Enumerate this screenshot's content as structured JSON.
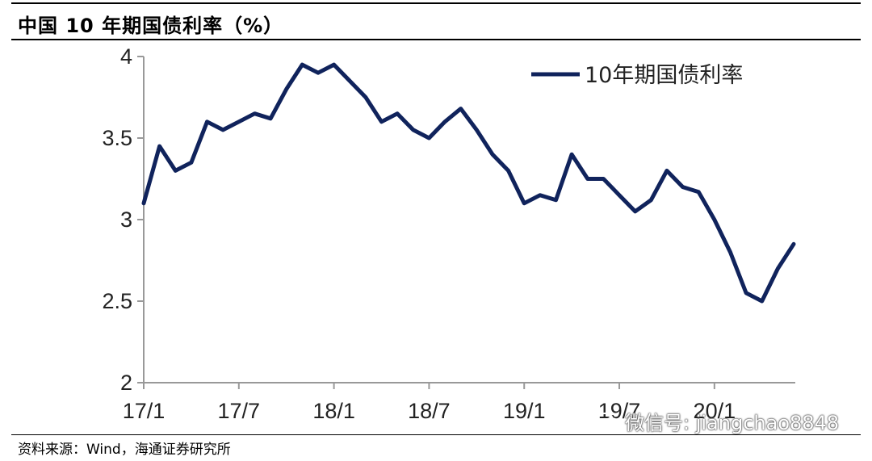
{
  "header": {
    "title": "中国 10 年期国债利率（%）"
  },
  "footer": {
    "source": "资料来源：Wind，海通证券研究所"
  },
  "watermark": {
    "text": "微信号: jiangchao8848",
    "icon": "wechat-icon"
  },
  "colors": {
    "series": "#10235c",
    "axis": "#999999"
  },
  "chart_data": {
    "type": "line",
    "title": "中国 10 年期国债利率（%）",
    "xlabel": "",
    "ylabel": "",
    "ylim": [
      2,
      4
    ],
    "yticks": [
      "2",
      "2.5",
      "3",
      "3.5",
      "4"
    ],
    "xticks": [
      "17/1",
      "17/7",
      "18/1",
      "18/7",
      "19/1",
      "19/7",
      "20/1"
    ],
    "legend": "top-right",
    "grid": false,
    "series": [
      {
        "name": "10年期国债利率",
        "x": [
          "17/1",
          "17/2",
          "17/3",
          "17/4",
          "17/5",
          "17/6",
          "17/7",
          "17/8",
          "17/9",
          "17/10",
          "17/11",
          "17/12",
          "18/1",
          "18/2",
          "18/3",
          "18/4",
          "18/5",
          "18/6",
          "18/7",
          "18/8",
          "18/9",
          "18/10",
          "18/11",
          "18/12",
          "19/1",
          "19/2",
          "19/3",
          "19/4",
          "19/5",
          "19/6",
          "19/7",
          "19/8",
          "19/9",
          "19/10",
          "19/11",
          "19/12",
          "20/1",
          "20/2",
          "20/3",
          "20/4",
          "20/5",
          "20/6"
        ],
        "values": [
          3.1,
          3.45,
          3.3,
          3.35,
          3.6,
          3.55,
          3.6,
          3.65,
          3.62,
          3.8,
          3.95,
          3.9,
          3.95,
          3.85,
          3.75,
          3.6,
          3.65,
          3.55,
          3.5,
          3.6,
          3.68,
          3.55,
          3.4,
          3.3,
          3.1,
          3.15,
          3.12,
          3.4,
          3.25,
          3.25,
          3.15,
          3.05,
          3.12,
          3.3,
          3.2,
          3.17,
          3.0,
          2.8,
          2.55,
          2.5,
          2.7,
          2.85
        ]
      }
    ]
  }
}
